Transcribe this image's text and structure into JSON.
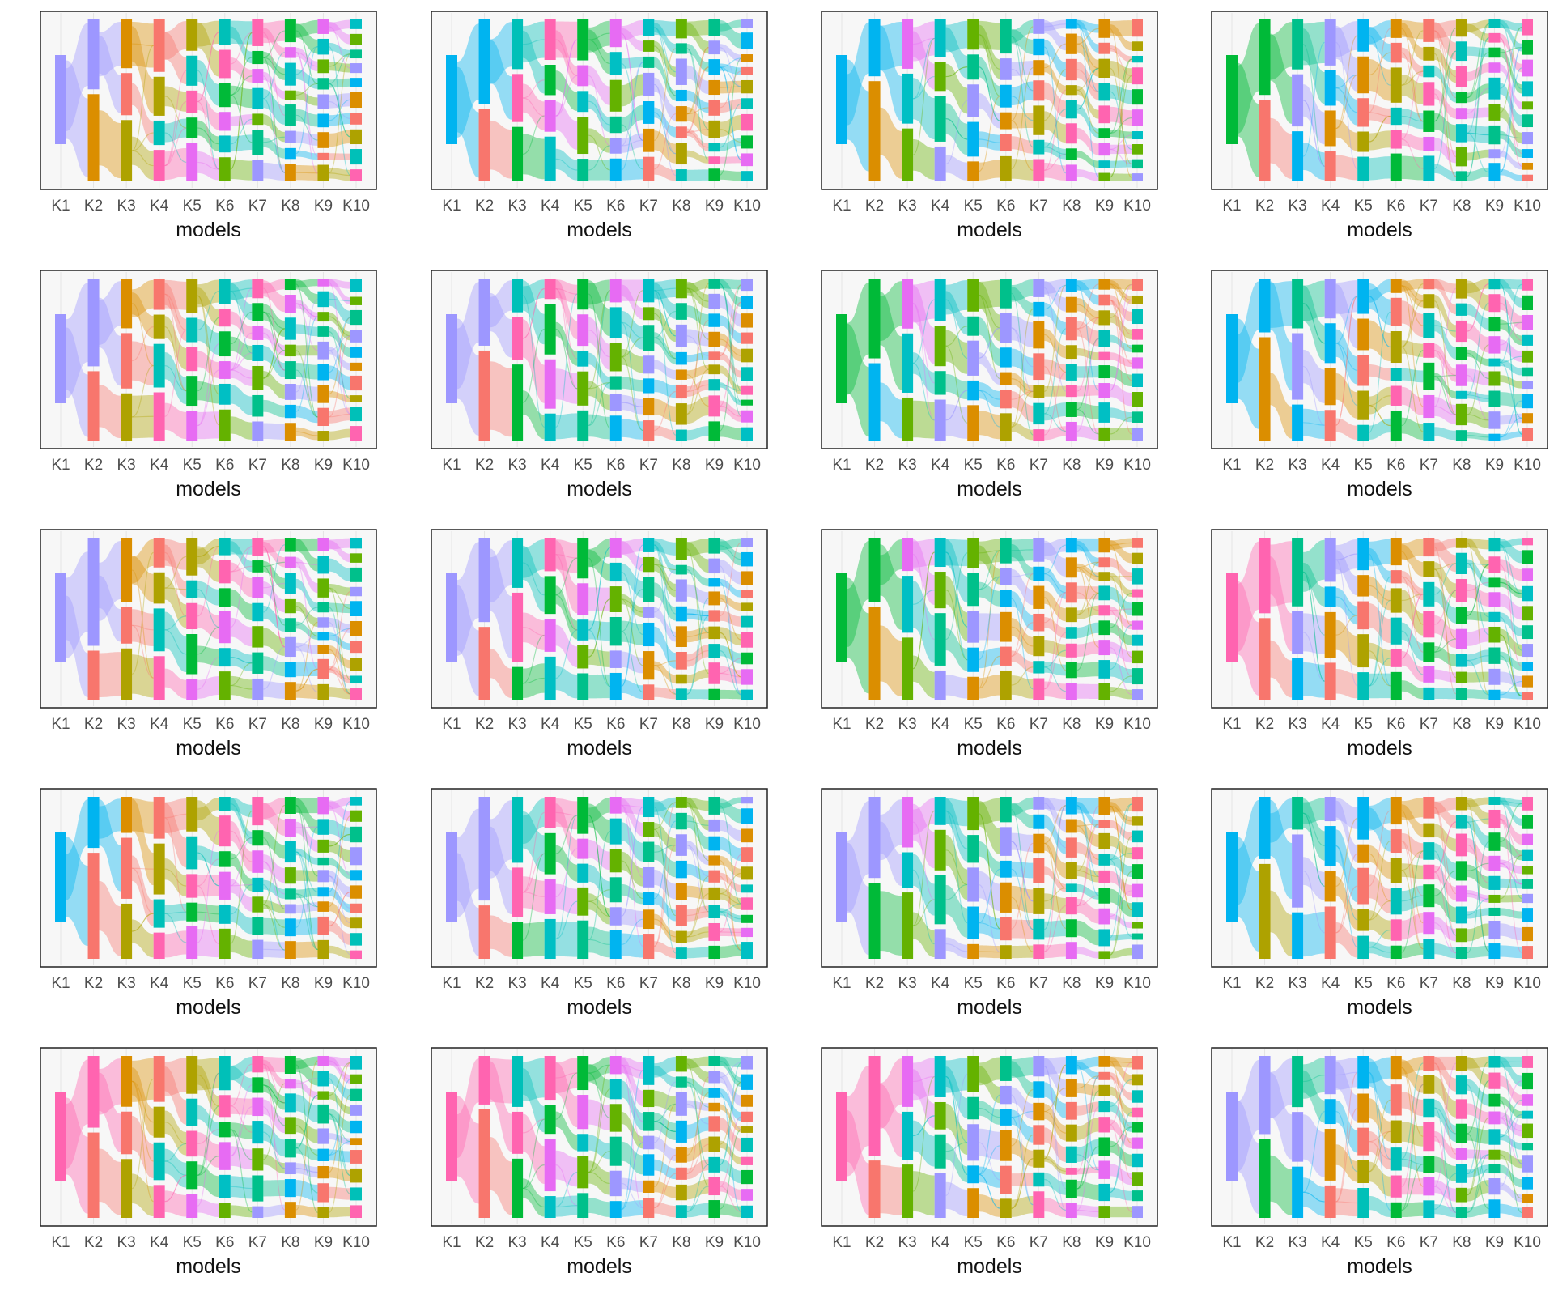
{
  "chart_data": {
    "type": "alluvial",
    "layout": {
      "rows": 5,
      "cols": 4
    },
    "x_categories": [
      "K1",
      "K2",
      "K3",
      "K4",
      "K5",
      "K6",
      "K7",
      "K8",
      "K9",
      "K10"
    ],
    "xlabel": "models",
    "cluster_counts_per_model": [
      1,
      2,
      3,
      4,
      5,
      6,
      7,
      8,
      9,
      10
    ],
    "panels_note": "20 alluvial panels; each column Kn stacks n clusters; flows connect cluster assignments between successive models",
    "palette": [
      "#9D97FF",
      "#00B4F0",
      "#DB8E00",
      "#F8766D",
      "#AEA200",
      "#00C0B8",
      "#FF64B0",
      "#00BA38",
      "#E76BF3",
      "#00BFC4",
      "#64B200",
      "#00C08B"
    ],
    "panel_colors": [
      [
        "#9D97FF",
        "#DB8E00"
      ],
      [
        "#00B4F0",
        "#F8766D"
      ],
      [
        "#00B4F0",
        "#DB8E00"
      ],
      [
        "#00BA38",
        "#F8766D"
      ],
      [
        "#9D97FF",
        "#F8766D"
      ],
      [
        "#9D97FF",
        "#F8766D"
      ],
      [
        "#00BA38",
        "#00B4F0"
      ],
      [
        "#00B4F0",
        "#DB8E00"
      ],
      [
        "#9D97FF",
        "#F8766D"
      ],
      [
        "#9D97FF",
        "#F8766D"
      ],
      [
        "#00BA38",
        "#DB8E00"
      ],
      [
        "#FF64B0",
        "#F8766D"
      ],
      [
        "#00B4F0",
        "#F8766D"
      ],
      [
        "#9D97FF",
        "#F8766D"
      ],
      [
        "#9D97FF",
        "#00BA38"
      ],
      [
        "#00B4F0",
        "#AEA200"
      ],
      [
        "#FF64B0",
        "#F8766D"
      ],
      [
        "#FF64B0",
        "#F8766D"
      ],
      [
        "#FF64B0",
        "#F8766D"
      ],
      [
        "#9D97FF",
        "#00BA38"
      ]
    ]
  }
}
